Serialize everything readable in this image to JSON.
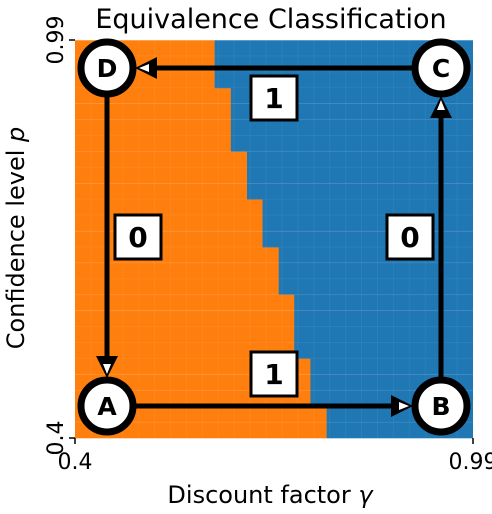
{
  "chart_data": {
    "type": "heatmap",
    "title": "Equivalence Classification",
    "xlabel_text": "Discount factor ",
    "xlabel_symbol": "γ",
    "ylabel_text": "Confidence level ",
    "ylabel_symbol": "p",
    "xlim": [
      0.4,
      0.99
    ],
    "ylim": [
      0.4,
      0.99
    ],
    "x_ticks": [
      {
        "value": 0.4,
        "label": "0.4"
      },
      {
        "value": 0.99,
        "label": "0.99"
      }
    ],
    "y_ticks": [
      {
        "value": 0.4,
        "label": "0.4"
      },
      {
        "value": 0.99,
        "label": "0.99"
      }
    ],
    "colors": {
      "class_0": "#ff7f0e",
      "class_1": "#1f77b4"
    },
    "grid_resolution": 25,
    "boundary": [
      {
        "p": 0.4,
        "gamma": 0.773
      },
      {
        "p": 0.424,
        "gamma": 0.773
      },
      {
        "p": 0.447,
        "gamma": 0.749
      },
      {
        "p": 0.471,
        "gamma": 0.749
      },
      {
        "p": 0.495,
        "gamma": 0.749
      },
      {
        "p": 0.518,
        "gamma": 0.725
      },
      {
        "p": 0.542,
        "gamma": 0.725
      },
      {
        "p": 0.565,
        "gamma": 0.725
      },
      {
        "p": 0.589,
        "gamma": 0.725
      },
      {
        "p": 0.613,
        "gamma": 0.702
      },
      {
        "p": 0.636,
        "gamma": 0.702
      },
      {
        "p": 0.66,
        "gamma": 0.702
      },
      {
        "p": 0.683,
        "gamma": 0.678
      },
      {
        "p": 0.707,
        "gamma": 0.678
      },
      {
        "p": 0.73,
        "gamma": 0.678
      },
      {
        "p": 0.754,
        "gamma": 0.655
      },
      {
        "p": 0.778,
        "gamma": 0.655
      },
      {
        "p": 0.801,
        "gamma": 0.655
      },
      {
        "p": 0.825,
        "gamma": 0.631
      },
      {
        "p": 0.848,
        "gamma": 0.631
      },
      {
        "p": 0.872,
        "gamma": 0.631
      },
      {
        "p": 0.896,
        "gamma": 0.631
      },
      {
        "p": 0.919,
        "gamma": 0.607
      },
      {
        "p": 0.943,
        "gamma": 0.607
      },
      {
        "p": 0.966,
        "gamma": 0.607
      }
    ],
    "nodes": [
      {
        "id": "A",
        "label": "A",
        "gamma": 0.4,
        "p": 0.4
      },
      {
        "id": "B",
        "label": "B",
        "gamma": 0.99,
        "p": 0.4
      },
      {
        "id": "C",
        "label": "C",
        "gamma": 0.99,
        "p": 0.99
      },
      {
        "id": "D",
        "label": "D",
        "gamma": 0.4,
        "p": 0.99
      }
    ],
    "edges": [
      {
        "from": "A",
        "to": "B",
        "label": "1"
      },
      {
        "from": "B",
        "to": "C",
        "label": "0"
      },
      {
        "from": "C",
        "to": "D",
        "label": "1"
      },
      {
        "from": "D",
        "to": "A",
        "label": "0"
      }
    ]
  }
}
